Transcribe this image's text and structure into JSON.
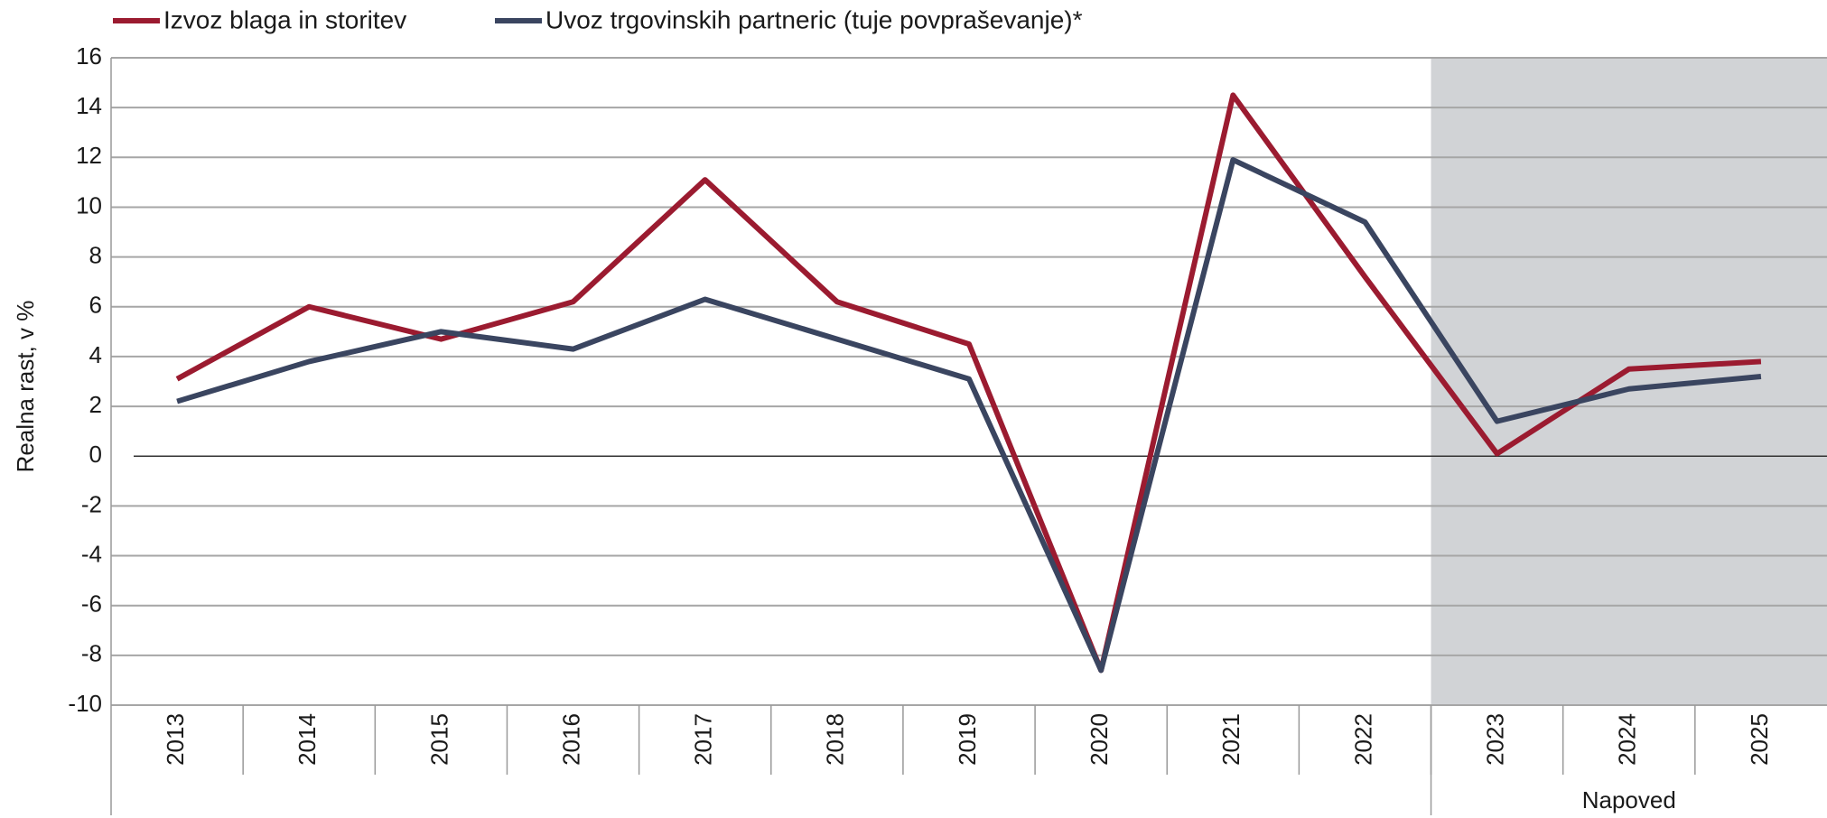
{
  "chart_data": {
    "type": "line",
    "ylabel": "Realna rast, v %",
    "categories": [
      "2013",
      "2014",
      "2015",
      "2016",
      "2017",
      "2018",
      "2019",
      "2020",
      "2021",
      "2022",
      "2023",
      "2024",
      "2025"
    ],
    "series": [
      {
        "name": "Izvoz blaga in storitev",
        "color": "#9b1b30",
        "values": [
          3.1,
          6.0,
          4.7,
          6.2,
          11.1,
          6.2,
          4.5,
          -8.6,
          14.5,
          7.2,
          0.1,
          3.5,
          3.8
        ]
      },
      {
        "name": "Uvoz trgovinskih partneric (tuje povpraševanje)*",
        "color": "#3a4560",
        "values": [
          2.2,
          3.8,
          5.0,
          4.3,
          6.3,
          4.7,
          3.1,
          -8.6,
          11.9,
          9.4,
          1.4,
          2.7,
          3.2
        ]
      }
    ],
    "ylim": [
      -10,
      16
    ],
    "yticks": [
      -10,
      -8,
      -6,
      -4,
      -2,
      0,
      2,
      4,
      6,
      8,
      10,
      12,
      14,
      16
    ],
    "grid": true,
    "shaded_region": {
      "label": "Napoved",
      "from": "2023",
      "to": "2025",
      "color": "#d1d3d6"
    }
  }
}
